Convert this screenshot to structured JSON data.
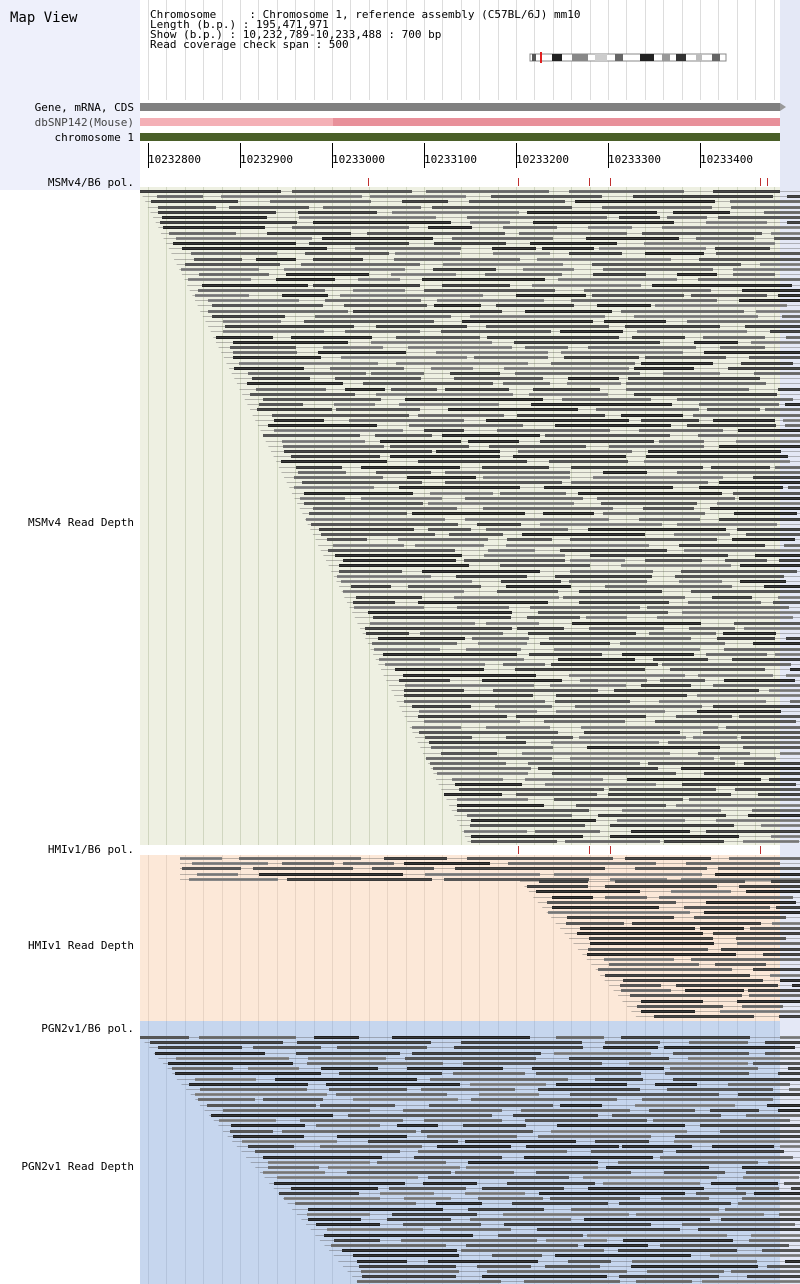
{
  "app": {
    "title": "Map View"
  },
  "info": {
    "chromosome": "Chromosome     : Chromosome 1, reference assembly (C57BL/6J) mm10",
    "length": "Length (b.p.) : 195,471,971",
    "show": "Show (b.p.) : 10,232,789-10,233,488 : 700 bp",
    "span": "Read coverage check span : 500"
  },
  "tracks": {
    "gene": "Gene, mRNA, CDS",
    "dbsnp": "dbSNP142(Mouse)",
    "chrom": "chromosome 1",
    "msm_pol": "MSMv4/B6 pol.",
    "msm_depth": "MSMv4 Read Depth",
    "hmi_pol": "HMIv1/B6 pol.",
    "hmi_depth": "HMIv1 Read Depth",
    "pgn_pol": "PGN2v1/B6 pol.",
    "pgn_depth": "PGN2v1 Read Depth"
  },
  "ruler": {
    "ticks": [
      "10232800",
      "10232900",
      "10233000",
      "10233100",
      "10233200",
      "10233300",
      "10233400"
    ]
  },
  "colors": {
    "msm_bg": "#eef0e2",
    "hmi_bg": "#fce8d8",
    "pgn_bg": "#c6d6ee",
    "gene": "#808080",
    "dbsnp": "#e8909a",
    "chrom": "#4a5f28",
    "snp_mark": "#c03030"
  }
}
